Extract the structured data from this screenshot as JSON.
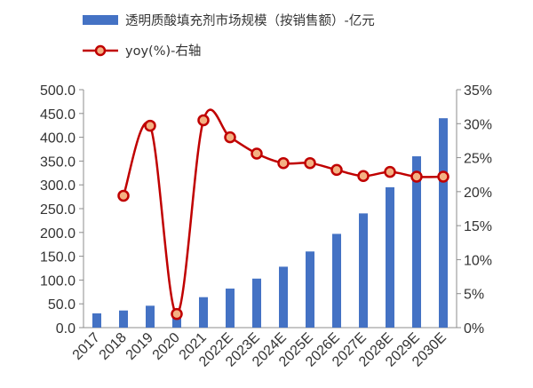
{
  "chart_data": {
    "type": "bar",
    "categories": [
      "2017",
      "2018",
      "2019",
      "2020",
      "2021",
      "2022E",
      "2023E",
      "2024E",
      "2025E",
      "2026E",
      "2027E",
      "2028E",
      "2029E",
      "2030E"
    ],
    "series": [
      {
        "name": "透明质酸填充剂市场规模（按销售额）-亿元",
        "type": "bar",
        "axis": "left",
        "color": "#4472C4",
        "values": [
          30,
          36,
          46,
          34,
          64,
          82,
          103,
          128,
          160,
          197,
          240,
          295,
          360,
          440
        ]
      },
      {
        "name": "yoy(%)-右轴",
        "type": "line",
        "axis": "right",
        "color": "#C00000",
        "marker_fill": "#F4B183",
        "values": [
          null,
          19.4,
          29.7,
          2.0,
          30.5,
          28.0,
          25.6,
          24.2,
          24.2,
          23.2,
          22.3,
          22.9,
          22.2,
          22.2
        ]
      }
    ],
    "y_left": {
      "ylim": [
        0,
        500
      ],
      "ticks": [
        "0.0",
        "50.0",
        "100.0",
        "150.0",
        "200.0",
        "250.0",
        "300.0",
        "350.0",
        "400.0",
        "450.0",
        "500.0"
      ]
    },
    "y_right": {
      "ylim": [
        0,
        35
      ],
      "ticks": [
        "0%",
        "5%",
        "10%",
        "15%",
        "20%",
        "25%",
        "30%",
        "35%"
      ]
    },
    "legend": {
      "placement": "top-left",
      "entries": [
        "透明质酸填充剂市场规模（按销售额）-亿元",
        "yoy(%)-右轴"
      ]
    },
    "grid": false
  }
}
